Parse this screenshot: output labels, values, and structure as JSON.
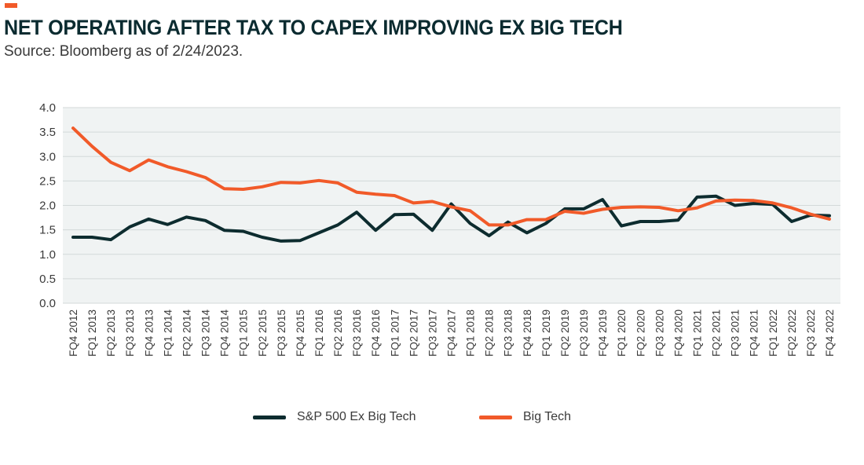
{
  "header": {
    "title": "NET OPERATING AFTER TAX TO CAPEX IMPROVING EX BIG TECH",
    "subtitle": "Source: Bloomberg as of 2/24/2023.",
    "accent_color": "#f15a29"
  },
  "chart_data": {
    "type": "line",
    "title": "NET OPERATING AFTER TAX TO CAPEX IMPROVING EX BIG TECH",
    "subtitle": "Source: Bloomberg as of 2/24/2023.",
    "xlabel": "",
    "ylabel": "",
    "ylim": [
      0,
      4.0
    ],
    "yticks": [
      "0.0",
      "0.5",
      "1.0",
      "1.5",
      "2.0",
      "2.5",
      "3.0",
      "3.5",
      "4.0"
    ],
    "grid": "horizontal",
    "background": "#f0f3f3",
    "legend_position": "bottom",
    "categories": [
      "FQ4 2012",
      "FQ1 2013",
      "FQ2 2013",
      "FQ3 2013",
      "FQ4 2013",
      "FQ1 2014",
      "FQ2 2014",
      "FQ3 2014",
      "FQ4 2014",
      "FQ1 2015",
      "FQ2 2015",
      "FQ3 2015",
      "FQ4 2015",
      "FQ1 2016",
      "FQ2 2016",
      "FQ3 2016",
      "FQ4 2016",
      "FQ1 2017",
      "FQ2 2017",
      "FQ3 2017",
      "FQ4 2017",
      "FQ1 2018",
      "FQ2 2018",
      "FQ3 2018",
      "FQ4 2018",
      "FQ1 2019",
      "FQ2 2019",
      "FQ3 2019",
      "FQ4 2019",
      "FQ1 2020",
      "FQ2 2020",
      "FQ3 2020",
      "FQ4 2020",
      "FQ1 2021",
      "FQ2 2021",
      "FQ3 2021",
      "FQ4 2021",
      "FQ1 2022",
      "FQ2 2022",
      "FQ3 2022",
      "FQ4 2022"
    ],
    "series": [
      {
        "name": "S&P 500 Ex Big Tech",
        "color": "#0d2c2f",
        "values": [
          1.35,
          1.35,
          1.3,
          1.56,
          1.72,
          1.61,
          1.76,
          1.69,
          1.49,
          1.47,
          1.35,
          1.27,
          1.28,
          1.44,
          1.6,
          1.86,
          1.49,
          1.81,
          1.82,
          1.49,
          2.03,
          1.63,
          1.38,
          1.66,
          1.44,
          1.63,
          1.93,
          1.93,
          2.12,
          1.58,
          1.67,
          1.67,
          1.7,
          2.17,
          2.19,
          2.0,
          2.04,
          2.02,
          1.67,
          1.8,
          1.79
        ]
      },
      {
        "name": "Big Tech",
        "color": "#f15a29",
        "values": [
          3.58,
          3.21,
          2.88,
          2.71,
          2.93,
          2.79,
          2.69,
          2.57,
          2.34,
          2.33,
          2.38,
          2.47,
          2.46,
          2.51,
          2.46,
          2.27,
          2.23,
          2.2,
          2.05,
          2.08,
          1.97,
          1.89,
          1.6,
          1.6,
          1.71,
          1.71,
          1.88,
          1.84,
          1.92,
          1.96,
          1.97,
          1.96,
          1.89,
          1.95,
          2.09,
          2.11,
          2.1,
          2.05,
          1.95,
          1.82,
          1.72
        ]
      }
    ]
  }
}
